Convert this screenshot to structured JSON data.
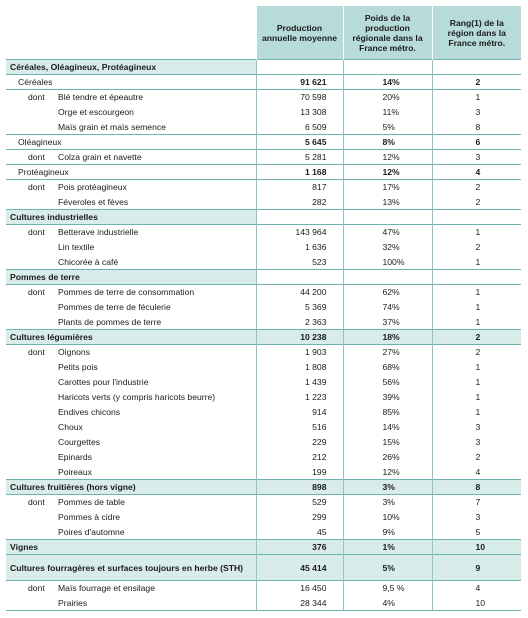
{
  "headers": [
    "",
    "Production annuelle moyenne",
    "Poids de la production régionale dans la France métro.",
    "Rang(1) de la région dans la France métro."
  ],
  "rows": [
    {
      "type": "cat",
      "label": "Céréales, Oléagineux, Protéagineux",
      "prod": "",
      "poids": "",
      "rang": ""
    },
    {
      "type": "sub",
      "label": "Céréales",
      "prod": "91 621",
      "poids": "14%",
      "rang": "2"
    },
    {
      "type": "item",
      "prefix": "dont",
      "label": "Blé tendre et épeautre",
      "prod": "70 598",
      "poids": "20%",
      "rang": "1"
    },
    {
      "type": "item",
      "prefix": "",
      "label": "Orge et escourgeon",
      "prod": "13 308",
      "poids": "11%",
      "rang": "3"
    },
    {
      "type": "item",
      "prefix": "",
      "label": "Maïs grain et maïs semence",
      "prod": "6 509",
      "poids": "5%",
      "rang": "8"
    },
    {
      "type": "sub",
      "label": "Oléagineux",
      "prod": "5 645",
      "poids": "8%",
      "rang": "6"
    },
    {
      "type": "item",
      "prefix": "dont",
      "label": "Colza grain et navette",
      "prod": "5 281",
      "poids": "12%",
      "rang": "3"
    },
    {
      "type": "sub",
      "label": "Protéagineux",
      "prod": "1 168",
      "poids": "12%",
      "rang": "4"
    },
    {
      "type": "item",
      "prefix": "dont",
      "label": "Pois protéagineux",
      "prod": "817",
      "poids": "17%",
      "rang": "2"
    },
    {
      "type": "item",
      "prefix": "",
      "label": "Féveroles et fèves",
      "prod": "282",
      "poids": "13%",
      "rang": "2"
    },
    {
      "type": "cat",
      "label": "Cultures industrielles",
      "prod": "",
      "poids": "",
      "rang": ""
    },
    {
      "type": "item",
      "prefix": "dont",
      "label": "Betterave industrielle",
      "prod": "143 964",
      "poids": "47%",
      "rang": "1"
    },
    {
      "type": "item",
      "prefix": "",
      "label": "Lin textile",
      "prod": "1 636",
      "poids": "32%",
      "rang": "2"
    },
    {
      "type": "item",
      "prefix": "",
      "label": "Chicorée à café",
      "prod": "523",
      "poids": "100%",
      "rang": "1"
    },
    {
      "type": "cat",
      "label": "Pommes de terre",
      "prod": "",
      "poids": "",
      "rang": ""
    },
    {
      "type": "item",
      "prefix": "dont",
      "label": "Pommes de terre de consommation",
      "prod": "44 200",
      "poids": "62%",
      "rang": "1"
    },
    {
      "type": "item",
      "prefix": "",
      "label": "Pommes de terre de féculerie",
      "prod": "5 369",
      "poids": "74%",
      "rang": "1"
    },
    {
      "type": "item",
      "prefix": "",
      "label": "Plants de pommes de terre",
      "prod": "2 363",
      "poids": "37%",
      "rang": "1"
    },
    {
      "type": "catv",
      "label": "Cultures légumières",
      "prod": "10 238",
      "poids": "18%",
      "rang": "2"
    },
    {
      "type": "item",
      "prefix": "dont",
      "label": "Oignons",
      "prod": "1 903",
      "poids": "27%",
      "rang": "2"
    },
    {
      "type": "item",
      "prefix": "",
      "label": "Petits pois",
      "prod": "1 808",
      "poids": "68%",
      "rang": "1"
    },
    {
      "type": "item",
      "prefix": "",
      "label": "Carottes pour l'industrie",
      "prod": "1 439",
      "poids": "56%",
      "rang": "1"
    },
    {
      "type": "item",
      "prefix": "",
      "label": "Haricots verts (y compris haricots beurre)",
      "prod": "1 223",
      "poids": "39%",
      "rang": "1"
    },
    {
      "type": "item",
      "prefix": "",
      "label": "Endives chicons",
      "prod": "914",
      "poids": "85%",
      "rang": "1"
    },
    {
      "type": "item",
      "prefix": "",
      "label": "Choux",
      "prod": "516",
      "poids": "14%",
      "rang": "3"
    },
    {
      "type": "item",
      "prefix": "",
      "label": "Courgettes",
      "prod": "229",
      "poids": "15%",
      "rang": "3"
    },
    {
      "type": "item",
      "prefix": "",
      "label": "Epinards",
      "prod": "212",
      "poids": "26%",
      "rang": "2"
    },
    {
      "type": "item",
      "prefix": "",
      "label": "Poireaux",
      "prod": "199",
      "poids": "12%",
      "rang": "4"
    },
    {
      "type": "catv",
      "label": "Cultures fruitières (hors vigne)",
      "prod": "898",
      "poids": "3%",
      "rang": "8"
    },
    {
      "type": "item",
      "prefix": "dont",
      "label": "Pommes de table",
      "prod": "529",
      "poids": "3%",
      "rang": "7"
    },
    {
      "type": "item",
      "prefix": "",
      "label": "Pommes à cidre",
      "prod": "299",
      "poids": "10%",
      "rang": "3"
    },
    {
      "type": "item",
      "prefix": "",
      "label": "Poires d'automne",
      "prod": "45",
      "poids": "9%",
      "rang": "5"
    },
    {
      "type": "catv",
      "label": "Vignes",
      "prod": "376",
      "poids": "1%",
      "rang": "10"
    },
    {
      "type": "catv-tall",
      "label": "Cultures fourragères et surfaces toujours en herbe (STH)",
      "prod": "45 414",
      "poids": "5%",
      "rang": "9"
    },
    {
      "type": "item",
      "prefix": "dont",
      "label": "Maïs fourrage et ensilage",
      "prod": "16 450",
      "poids": "9,5 %",
      "rang": "4"
    },
    {
      "type": "item",
      "prefix": "",
      "label": "Prairies",
      "prod": "28 344",
      "poids": "4%",
      "rang": "10"
    }
  ]
}
